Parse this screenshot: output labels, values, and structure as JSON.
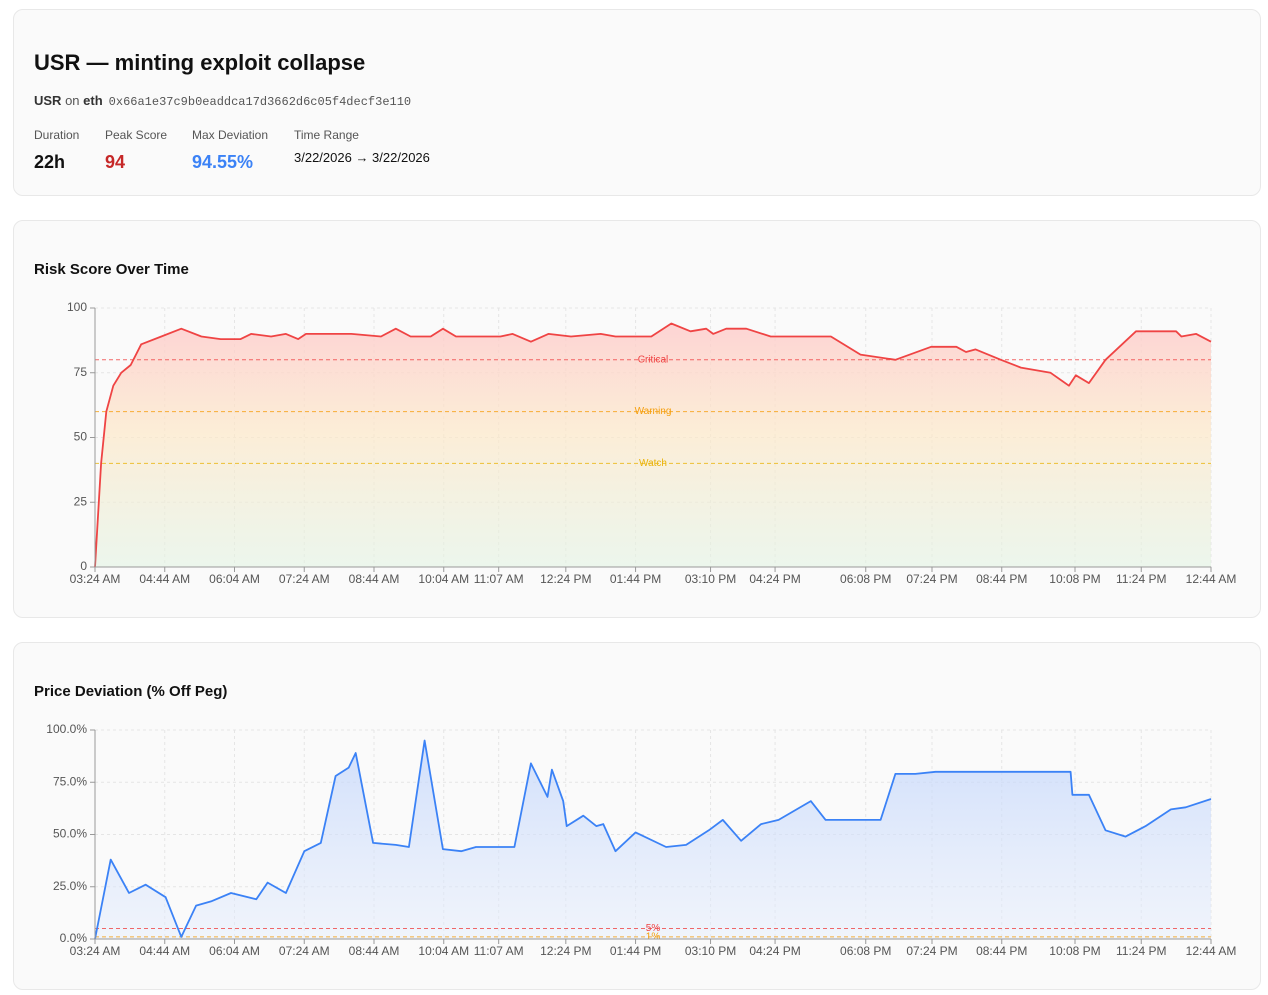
{
  "header": {
    "title": "USR — minting exploit collapse",
    "token": "USR",
    "on": "on",
    "chain": "eth",
    "address": "0x66a1e37c9b0eaddca17d3662d6c05f4decf3e110",
    "stats": [
      {
        "label": "Duration",
        "value": "22h"
      },
      {
        "label": "Peak Score",
        "value": "94"
      },
      {
        "label": "Max Deviation",
        "value": "94.55%"
      },
      {
        "label": "Time Range",
        "value": "3/22/2026 → 3/22/2026"
      }
    ]
  },
  "chart_data": [
    {
      "type": "line",
      "title": "Risk Score Over Time",
      "color": "#ef4444",
      "fill": "score",
      "grid": true,
      "xlim": [
        "03:24 AM",
        "12:44 AM"
      ],
      "xticks": [
        "03:24 AM",
        "04:44 AM",
        "06:04 AM",
        "07:24 AM",
        "08:44 AM",
        "10:04 AM",
        "11:07 AM",
        "12:24 PM",
        "01:44 PM",
        "03:10 PM",
        "04:24 PM",
        "06:08 PM",
        "07:24 PM",
        "08:44 PM",
        "10:08 PM",
        "11:24 PM",
        "12:44 AM"
      ],
      "ylim": [
        0,
        100
      ],
      "yticks": [
        0,
        25,
        50,
        75,
        100
      ],
      "thresholds": [
        {
          "value": 80,
          "label": "Critical",
          "color": "#ef4444"
        },
        {
          "value": 60,
          "label": "Warning",
          "color": "#f59e0b"
        },
        {
          "value": 40,
          "label": "Watch",
          "color": "#eab308"
        }
      ],
      "x": [
        "03:24 AM",
        "03:31 AM",
        "03:37 AM",
        "03:45 AM",
        "03:54 AM",
        "04:05 AM",
        "04:17 AM",
        "04:40 AM",
        "05:03 AM",
        "05:26 AM",
        "05:48 AM",
        "06:11 AM",
        "06:23 AM",
        "06:46 AM",
        "07:03 AM",
        "07:17 AM",
        "07:26 AM",
        "07:55 AM",
        "08:18 AM",
        "08:52 AM",
        "09:09 AM",
        "09:26 AM",
        "09:49 AM",
        "10:03 AM",
        "10:18 AM",
        "11:09 AM",
        "11:23 AM",
        "11:44 AM",
        "12:04 PM",
        "12:30 PM",
        "01:04 PM",
        "01:21 PM",
        "02:02 PM",
        "02:25 PM",
        "02:47 PM",
        "03:05 PM",
        "03:13 PM",
        "03:28 PM",
        "03:51 PM",
        "04:19 PM",
        "05:28 PM",
        "06:02 PM",
        "06:42 PM",
        "07:23 PM",
        "07:52 PM",
        "08:03 PM",
        "08:14 PM",
        "08:43 PM",
        "09:06 PM",
        "09:40 PM",
        "10:01 PM",
        "10:09 PM",
        "10:24 PM",
        "10:43 PM",
        "11:18 PM",
        "11:35 PM",
        "12:04 AM",
        "12:10 AM",
        "12:27 AM",
        "12:44 AM"
      ],
      "values": [
        0,
        40,
        60,
        70,
        75,
        78,
        86,
        89,
        92,
        89,
        88,
        88,
        90,
        89,
        90,
        88,
        90,
        90,
        90,
        89,
        92,
        89,
        89,
        92,
        89,
        89,
        90,
        87,
        90,
        89,
        90,
        89,
        89,
        94,
        91,
        92,
        90,
        92,
        92,
        89,
        89,
        82,
        80,
        85,
        85,
        83,
        84,
        80,
        77,
        75,
        70,
        74,
        71,
        80,
        91,
        91,
        91,
        89,
        90,
        87
      ]
    },
    {
      "type": "line",
      "title": "Price Deviation (% Off Peg)",
      "color": "#3b82f6",
      "fill": "blue",
      "grid": true,
      "xlim": [
        "03:24 AM",
        "12:44 AM"
      ],
      "xticks": [
        "03:24 AM",
        "04:44 AM",
        "06:04 AM",
        "07:24 AM",
        "08:44 AM",
        "10:04 AM",
        "11:07 AM",
        "12:24 PM",
        "01:44 PM",
        "03:10 PM",
        "04:24 PM",
        "06:08 PM",
        "07:24 PM",
        "08:44 PM",
        "10:08 PM",
        "11:24 PM",
        "12:44 AM"
      ],
      "ylim": [
        0,
        100
      ],
      "yticks": [
        {
          "value": 0,
          "label": "0.0%"
        },
        {
          "value": 25,
          "label": "25.0%"
        },
        {
          "value": 50,
          "label": "50.0%"
        },
        {
          "value": 75,
          "label": "75.0%"
        },
        {
          "value": 100,
          "label": "100.0%"
        }
      ],
      "thresholds": [
        {
          "value": 5,
          "label": "5%",
          "color": "#ef4444"
        },
        {
          "value": 1,
          "label": "1%",
          "color": "#f59e0b"
        }
      ],
      "x": [
        "03:24 AM",
        "03:42 AM",
        "04:03 AM",
        "04:22 AM",
        "04:45 AM",
        "05:03 AM",
        "05:20 AM",
        "05:37 AM",
        "06:00 AM",
        "06:29 AM",
        "06:42 AM",
        "07:03 AM",
        "07:24 AM",
        "07:43 AM",
        "08:00 AM",
        "08:15 AM",
        "08:23 AM",
        "08:43 AM",
        "09:09 AM",
        "09:24 AM",
        "09:42 AM",
        "10:03 AM",
        "10:24 AM",
        "10:41 AM",
        "11:25 AM",
        "11:44 AM",
        "12:03 PM",
        "12:08 PM",
        "12:21 PM",
        "12:25 PM",
        "12:44 PM",
        "12:59 PM",
        "01:07 PM",
        "01:21 PM",
        "01:44 PM",
        "02:19 PM",
        "02:42 PM",
        "03:08 PM",
        "03:24 PM",
        "03:45 PM",
        "04:08 PM",
        "04:28 PM",
        "05:05 PM",
        "05:22 PM",
        "06:25 PM",
        "06:42 PM",
        "07:05 PM",
        "07:28 PM",
        "08:54 PM",
        "10:03 PM",
        "10:05 PM",
        "10:24 PM",
        "10:43 PM",
        "11:06 PM",
        "11:29 PM",
        "11:58 PM",
        "12:15 AM",
        "12:44 AM"
      ],
      "values": [
        0,
        38,
        22,
        26,
        20,
        1,
        16,
        18,
        22,
        19,
        27,
        22,
        42,
        46,
        78,
        82,
        89,
        46,
        45,
        44,
        95,
        43,
        42,
        44,
        44,
        84,
        68,
        81,
        66,
        54,
        59,
        54,
        55,
        42,
        51,
        44,
        45,
        52,
        57,
        47,
        55,
        57,
        66,
        57,
        57,
        79,
        79,
        80,
        80,
        80,
        69,
        69,
        52,
        49,
        54,
        62,
        63,
        67
      ]
    }
  ]
}
